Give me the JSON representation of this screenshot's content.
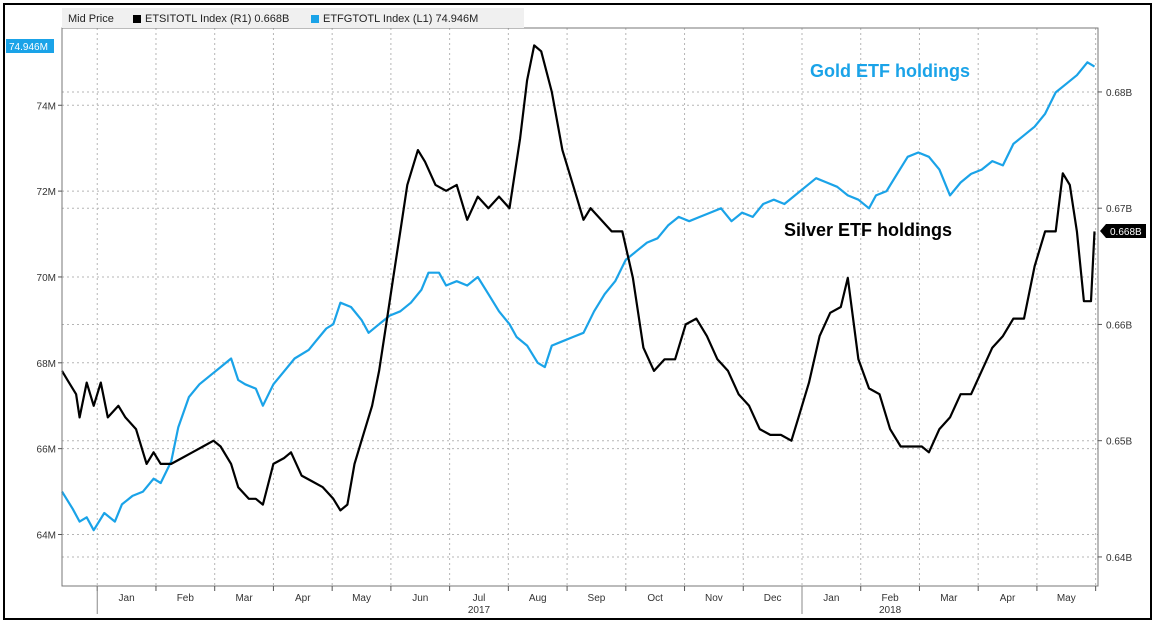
{
  "chart_data": {
    "type": "line",
    "legend": {
      "header": "Mid Price",
      "placement": "top-left",
      "items": [
        {
          "label": "ETSITOTL Index (R1) 0.668B",
          "color": "#000000"
        },
        {
          "label": "ETFGTOTL Index (L1) 74.946M",
          "color": "#1aa3e8"
        }
      ]
    },
    "annotations": {
      "gold": "Gold ETF holdings",
      "silver": "Silver ETF holdings"
    },
    "last_value_labels": {
      "left": "74.946M",
      "right": "0.668B"
    },
    "x_axis": {
      "months": [
        "Jan",
        "Feb",
        "Mar",
        "Apr",
        "May",
        "Jun",
        "Jul",
        "Aug",
        "Sep",
        "Oct",
        "Nov",
        "Dec",
        "Jan",
        "Feb",
        "Mar",
        "Apr",
        "May"
      ],
      "years": [
        {
          "label": "2017",
          "month_index": 6
        },
        {
          "label": "2018",
          "month_index": 13
        }
      ],
      "start": 2016.95,
      "end": 2018.42
    },
    "y_left": {
      "min": 62.8,
      "max": 75.8,
      "ticks": [
        64,
        66,
        68,
        70,
        72,
        74
      ],
      "tick_labels": [
        "64M",
        "66M",
        "68M",
        "70M",
        "72M",
        "74M"
      ]
    },
    "y_right": {
      "min": 0.6375,
      "max": 0.6855,
      "ticks": [
        0.64,
        0.65,
        0.66,
        0.67,
        0.68
      ],
      "tick_labels": [
        "0.64B",
        "0.65B",
        "0.66B",
        "0.67B",
        "0.68B"
      ]
    },
    "grid": true,
    "series": [
      {
        "name": "ETFGTOTL Index (L1)",
        "axis": "left",
        "color": "#1aa3e8",
        "points": [
          [
            2016.95,
            65.0
          ],
          [
            2016.965,
            64.6
          ],
          [
            2016.975,
            64.3
          ],
          [
            2016.985,
            64.4
          ],
          [
            2016.995,
            64.1
          ],
          [
            2017.01,
            64.5
          ],
          [
            2017.025,
            64.3
          ],
          [
            2017.035,
            64.7
          ],
          [
            2017.05,
            64.9
          ],
          [
            2017.065,
            65.0
          ],
          [
            2017.08,
            65.3
          ],
          [
            2017.09,
            65.2
          ],
          [
            2017.105,
            65.7
          ],
          [
            2017.115,
            66.5
          ],
          [
            2017.13,
            67.2
          ],
          [
            2017.145,
            67.5
          ],
          [
            2017.16,
            67.7
          ],
          [
            2017.175,
            67.9
          ],
          [
            2017.19,
            68.1
          ],
          [
            2017.2,
            67.6
          ],
          [
            2017.21,
            67.5
          ],
          [
            2017.225,
            67.4
          ],
          [
            2017.235,
            67.0
          ],
          [
            2017.25,
            67.5
          ],
          [
            2017.265,
            67.8
          ],
          [
            2017.28,
            68.1
          ],
          [
            2017.3,
            68.3
          ],
          [
            2017.31,
            68.5
          ],
          [
            2017.325,
            68.8
          ],
          [
            2017.335,
            68.9
          ],
          [
            2017.345,
            69.4
          ],
          [
            2017.36,
            69.3
          ],
          [
            2017.375,
            69.0
          ],
          [
            2017.385,
            68.7
          ],
          [
            2017.4,
            68.9
          ],
          [
            2017.415,
            69.1
          ],
          [
            2017.43,
            69.2
          ],
          [
            2017.445,
            69.4
          ],
          [
            2017.46,
            69.7
          ],
          [
            2017.47,
            70.1
          ],
          [
            2017.485,
            70.1
          ],
          [
            2017.495,
            69.8
          ],
          [
            2017.51,
            69.9
          ],
          [
            2017.525,
            69.8
          ],
          [
            2017.54,
            70.0
          ],
          [
            2017.555,
            69.6
          ],
          [
            2017.57,
            69.2
          ],
          [
            2017.585,
            68.9
          ],
          [
            2017.595,
            68.6
          ],
          [
            2017.61,
            68.4
          ],
          [
            2017.625,
            68.0
          ],
          [
            2017.635,
            67.9
          ],
          [
            2017.645,
            68.4
          ],
          [
            2017.66,
            68.5
          ],
          [
            2017.675,
            68.6
          ],
          [
            2017.69,
            68.7
          ],
          [
            2017.705,
            69.2
          ],
          [
            2017.72,
            69.6
          ],
          [
            2017.735,
            69.9
          ],
          [
            2017.75,
            70.4
          ],
          [
            2017.765,
            70.6
          ],
          [
            2017.78,
            70.8
          ],
          [
            2017.795,
            70.9
          ],
          [
            2017.81,
            71.2
          ],
          [
            2017.825,
            71.4
          ],
          [
            2017.84,
            71.3
          ],
          [
            2017.855,
            71.4
          ],
          [
            2017.87,
            71.5
          ],
          [
            2017.885,
            71.6
          ],
          [
            2017.9,
            71.3
          ],
          [
            2017.915,
            71.5
          ],
          [
            2017.93,
            71.4
          ],
          [
            2017.945,
            71.7
          ],
          [
            2017.96,
            71.8
          ],
          [
            2017.975,
            71.7
          ],
          [
            2017.99,
            71.9
          ],
          [
            2018.005,
            72.1
          ],
          [
            2018.02,
            72.3
          ],
          [
            2018.035,
            72.2
          ],
          [
            2018.05,
            72.1
          ],
          [
            2018.065,
            71.9
          ],
          [
            2018.08,
            71.8
          ],
          [
            2018.095,
            71.6
          ],
          [
            2018.105,
            71.9
          ],
          [
            2018.12,
            72.0
          ],
          [
            2018.135,
            72.4
          ],
          [
            2018.15,
            72.8
          ],
          [
            2018.165,
            72.9
          ],
          [
            2018.18,
            72.8
          ],
          [
            2018.195,
            72.5
          ],
          [
            2018.21,
            71.9
          ],
          [
            2018.225,
            72.2
          ],
          [
            2018.24,
            72.4
          ],
          [
            2018.255,
            72.5
          ],
          [
            2018.27,
            72.7
          ],
          [
            2018.285,
            72.6
          ],
          [
            2018.3,
            73.1
          ],
          [
            2018.315,
            73.3
          ],
          [
            2018.33,
            73.5
          ],
          [
            2018.345,
            73.8
          ],
          [
            2018.36,
            74.3
          ],
          [
            2018.375,
            74.5
          ],
          [
            2018.39,
            74.7
          ],
          [
            2018.405,
            75.0
          ],
          [
            2018.415,
            74.9
          ]
        ]
      },
      {
        "name": "ETSITOTL Index (R1)",
        "axis": "right",
        "color": "#000000",
        "points": [
          [
            2016.95,
            0.656
          ],
          [
            2016.96,
            0.655
          ],
          [
            2016.97,
            0.654
          ],
          [
            2016.975,
            0.652
          ],
          [
            2016.985,
            0.655
          ],
          [
            2016.995,
            0.653
          ],
          [
            2017.005,
            0.655
          ],
          [
            2017.015,
            0.652
          ],
          [
            2017.03,
            0.653
          ],
          [
            2017.04,
            0.652
          ],
          [
            2017.055,
            0.651
          ],
          [
            2017.07,
            0.648
          ],
          [
            2017.08,
            0.649
          ],
          [
            2017.09,
            0.648
          ],
          [
            2017.105,
            0.648
          ],
          [
            2017.12,
            0.6485
          ],
          [
            2017.135,
            0.649
          ],
          [
            2017.15,
            0.6495
          ],
          [
            2017.165,
            0.65
          ],
          [
            2017.175,
            0.6495
          ],
          [
            2017.19,
            0.648
          ],
          [
            2017.2,
            0.646
          ],
          [
            2017.215,
            0.645
          ],
          [
            2017.225,
            0.645
          ],
          [
            2017.235,
            0.6445
          ],
          [
            2017.25,
            0.648
          ],
          [
            2017.265,
            0.6485
          ],
          [
            2017.275,
            0.649
          ],
          [
            2017.29,
            0.647
          ],
          [
            2017.305,
            0.6465
          ],
          [
            2017.32,
            0.646
          ],
          [
            2017.335,
            0.645
          ],
          [
            2017.345,
            0.644
          ],
          [
            2017.355,
            0.6445
          ],
          [
            2017.365,
            0.648
          ],
          [
            2017.375,
            0.65
          ],
          [
            2017.39,
            0.653
          ],
          [
            2017.4,
            0.656
          ],
          [
            2017.41,
            0.66
          ],
          [
            2017.42,
            0.664
          ],
          [
            2017.43,
            0.668
          ],
          [
            2017.44,
            0.672
          ],
          [
            2017.455,
            0.675
          ],
          [
            2017.465,
            0.674
          ],
          [
            2017.48,
            0.672
          ],
          [
            2017.495,
            0.6715
          ],
          [
            2017.51,
            0.672
          ],
          [
            2017.525,
            0.669
          ],
          [
            2017.54,
            0.671
          ],
          [
            2017.555,
            0.67
          ],
          [
            2017.57,
            0.671
          ],
          [
            2017.585,
            0.67
          ],
          [
            2017.6,
            0.676
          ],
          [
            2017.61,
            0.681
          ],
          [
            2017.62,
            0.684
          ],
          [
            2017.63,
            0.6835
          ],
          [
            2017.645,
            0.68
          ],
          [
            2017.66,
            0.675
          ],
          [
            2017.675,
            0.672
          ],
          [
            2017.69,
            0.669
          ],
          [
            2017.7,
            0.67
          ],
          [
            2017.715,
            0.669
          ],
          [
            2017.73,
            0.668
          ],
          [
            2017.745,
            0.668
          ],
          [
            2017.76,
            0.664
          ],
          [
            2017.775,
            0.658
          ],
          [
            2017.79,
            0.656
          ],
          [
            2017.805,
            0.657
          ],
          [
            2017.82,
            0.657
          ],
          [
            2017.835,
            0.66
          ],
          [
            2017.85,
            0.6605
          ],
          [
            2017.865,
            0.659
          ],
          [
            2017.88,
            0.657
          ],
          [
            2017.895,
            0.656
          ],
          [
            2017.91,
            0.654
          ],
          [
            2017.925,
            0.653
          ],
          [
            2017.94,
            0.651
          ],
          [
            2017.955,
            0.6505
          ],
          [
            2017.97,
            0.6505
          ],
          [
            2017.985,
            0.65
          ],
          [
            2017.995,
            0.652
          ],
          [
            2018.01,
            0.655
          ],
          [
            2018.025,
            0.659
          ],
          [
            2018.04,
            0.661
          ],
          [
            2018.055,
            0.6615
          ],
          [
            2018.065,
            0.664
          ],
          [
            2018.08,
            0.657
          ],
          [
            2018.095,
            0.6545
          ],
          [
            2018.11,
            0.654
          ],
          [
            2018.125,
            0.651
          ],
          [
            2018.14,
            0.6495
          ],
          [
            2018.155,
            0.6495
          ],
          [
            2018.17,
            0.6495
          ],
          [
            2018.18,
            0.649
          ],
          [
            2018.195,
            0.651
          ],
          [
            2018.21,
            0.652
          ],
          [
            2018.225,
            0.654
          ],
          [
            2018.24,
            0.654
          ],
          [
            2018.255,
            0.656
          ],
          [
            2018.27,
            0.658
          ],
          [
            2018.285,
            0.659
          ],
          [
            2018.3,
            0.6605
          ],
          [
            2018.315,
            0.6605
          ],
          [
            2018.33,
            0.665
          ],
          [
            2018.345,
            0.668
          ],
          [
            2018.36,
            0.668
          ],
          [
            2018.37,
            0.673
          ],
          [
            2018.38,
            0.672
          ],
          [
            2018.39,
            0.668
          ],
          [
            2018.4,
            0.662
          ],
          [
            2018.41,
            0.662
          ],
          [
            2018.415,
            0.668
          ]
        ]
      }
    ]
  }
}
